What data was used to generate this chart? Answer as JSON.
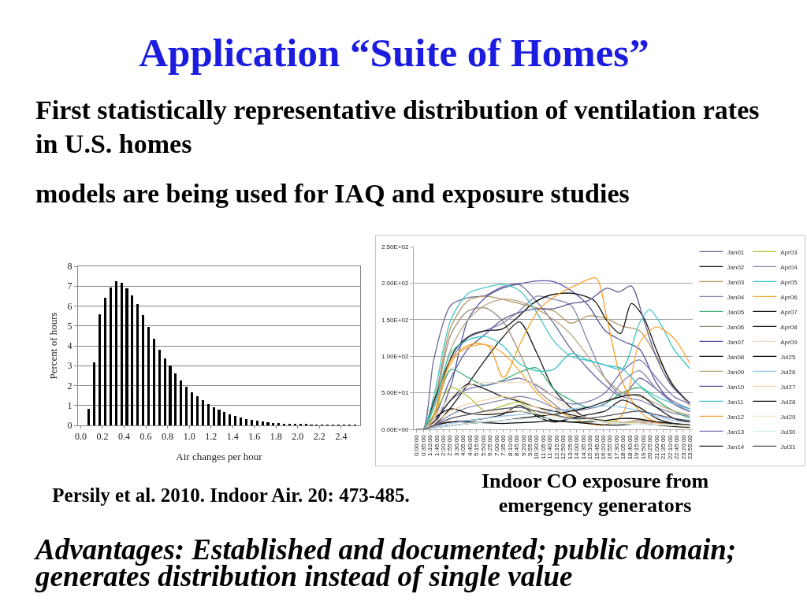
{
  "chart_data": [
    {
      "type": "histogram",
      "title": "Application “Suite of Homes”",
      "subtitle": "First statistically representative distribution of ventilation rates in U.S. homes",
      "annotations": [
        "models are being used for IAQ and exposure studies",
        "Persily et al. 2010. Indoor Air. 20: 473-485."
      ],
      "xlabel": "Air changes per hour",
      "ylabel": "Percent of hours",
      "color": "#000000",
      "bins": [
        0.05,
        0.1,
        0.15,
        0.2,
        0.25,
        0.3,
        0.35,
        0.4,
        0.45,
        0.5,
        0.55,
        0.6,
        0.65,
        0.7,
        0.75,
        0.8,
        0.85,
        0.9,
        0.95,
        1,
        1.05,
        1.1,
        1.15,
        1.2,
        1.25,
        1.3,
        1.35,
        1.4,
        1.45,
        1.5,
        1.55,
        1.6,
        1.65,
        1.7,
        1.75,
        1.8,
        1.85,
        1.9,
        1.95,
        2,
        2.05,
        2.1,
        2.15,
        2.2,
        2.25,
        2.3,
        2.35,
        2.4,
        2.45,
        2.5,
        2.55
      ],
      "values": [
        0.85,
        3.15,
        5.6,
        6.4,
        6.95,
        7.25,
        7.15,
        6.9,
        6.55,
        6.1,
        5.55,
        4.95,
        4.35,
        3.8,
        3.35,
        3,
        2.6,
        2.25,
        1.95,
        1.68,
        1.47,
        1.25,
        1.08,
        0.93,
        0.8,
        0.68,
        0.57,
        0.48,
        0.4,
        0.33,
        0.27,
        0.23,
        0.18,
        0.15,
        0.12,
        0.1,
        0.08,
        0.07,
        0.05,
        0.05,
        0.04,
        0.03,
        0.03,
        0.02,
        0.02,
        0.02,
        0.01,
        0.01,
        0.01,
        0.01
      ],
      "xlim": [
        -0.025,
        2.575
      ],
      "xticks": [
        {
          "value": 0,
          "label": "0.0"
        },
        0.2,
        0.4,
        0.6,
        0.8,
        {
          "value": 1,
          "label": "1.0"
        },
        1.2,
        1.4,
        1.6,
        1.8,
        {
          "value": 2,
          "label": "2.0"
        },
        2.2,
        2.4
      ],
      "ylim": [
        0,
        8
      ],
      "yticks": [
        0,
        1,
        2,
        3,
        4,
        5,
        6,
        7,
        8
      ],
      "grid": "y"
    },
    {
      "type": "line",
      "title": "Indoor CO exposure from emergency generators",
      "annotations": [
        "Advantages: Established and documented; public domain; generates distribution instead of single value"
      ],
      "x": [
        0,
        0.5833,
        1.5,
        3,
        4.5,
        6,
        7.5,
        9,
        10.5,
        12,
        13.5,
        15,
        16.5,
        18,
        19.5,
        21,
        22.5,
        23.9167
      ],
      "series": [
        {
          "name": "Jan01",
          "color": "#6b6b9b",
          "values": [
            0,
            0,
            95,
            170,
            180,
            183,
            195,
            198,
            175,
            145,
            110,
            83,
            60,
            45,
            70,
            55,
            38,
            28
          ]
        },
        {
          "name": "Jan02",
          "color": "#1c1c1c",
          "values": [
            0,
            0,
            5,
            30,
            62,
            95,
            125,
            147,
            105,
            55,
            30,
            15,
            10,
            8,
            8,
            6,
            5,
            4
          ]
        },
        {
          "name": "Jan03",
          "color": "#b39867",
          "values": [
            0,
            0,
            35,
            140,
            176,
            182,
            178,
            172,
            166,
            162,
            145,
            155,
            152,
            141,
            135,
            100,
            60,
            32
          ]
        },
        {
          "name": "Jan04",
          "color": "#8585b5",
          "values": [
            0,
            0,
            30,
            95,
            125,
            135,
            145,
            162,
            182,
            178,
            170,
            120,
            70,
            45,
            40,
            30,
            22,
            18
          ]
        },
        {
          "name": "Jan05",
          "color": "#3fae7a",
          "values": [
            0,
            0,
            20,
            82,
            71,
            60,
            67,
            78,
            84,
            55,
            40,
            30,
            35,
            50,
            57,
            40,
            25,
            15
          ]
        },
        {
          "name": "Jan06",
          "color": "#9e8f7e",
          "values": [
            0,
            0,
            30,
            130,
            162,
            166,
            149,
            105,
            55,
            35,
            18,
            12,
            10,
            10,
            12,
            10,
            8,
            6
          ]
        },
        {
          "name": "Jan07",
          "color": "#5555a5",
          "values": [
            0,
            0,
            5,
            60,
            150,
            180,
            193,
            199,
            203,
            202,
            190,
            170,
            135,
            121,
            110,
            63,
            35,
            24
          ]
        },
        {
          "name": "Jan08",
          "color": "#111111",
          "x": [
            0,
            0.5833,
            1.54,
            3.42,
            4.77,
            6.12,
            7.47,
            8.82,
            10.16,
            11.78,
            13.67,
            15.56,
            16.64,
            17.85,
            18.79,
            19.87,
            20.95,
            22.3,
            23.9167
          ],
          "values": [
            0,
            0,
            40,
            110,
            129,
            135,
            137,
            153,
            172,
            184,
            186,
            176,
            149,
            131,
            172,
            153,
            110,
            63,
            36
          ]
        },
        {
          "name": "Jan09",
          "color": "#b8a57f",
          "values": [
            0,
            0,
            30,
            110,
            150,
            170,
            178,
            175,
            165,
            150,
            130,
            100,
            70,
            50,
            45,
            35,
            25,
            20
          ]
        },
        {
          "name": "Jan10",
          "color": "#5d5d95",
          "x": [
            0,
            0.5833,
            1.5,
            3,
            4.5,
            6,
            7.5,
            9,
            10.5,
            12,
            13.5,
            15,
            16.64,
            17.71,
            18.79,
            19.87,
            20.95,
            22.3,
            23.9167
          ],
          "values": [
            0,
            0,
            15,
            70,
            110,
            130,
            150,
            160,
            165,
            165,
            172,
            176,
            193,
            188,
            196,
            150,
            100,
            60,
            36
          ]
        },
        {
          "name": "Jan11",
          "color": "#45c3c8",
          "values": [
            0,
            0,
            45,
            150,
            186,
            194,
            198,
            190,
            160,
            121,
            100,
            94,
            88,
            83,
            60,
            45,
            35,
            28
          ]
        },
        {
          "name": "Jan12",
          "color": "#f5a02a",
          "x": [
            0,
            0.5833,
            1.27,
            2.62,
            3.96,
            5.31,
            6.39,
            7.6,
            9.09,
            10.7,
            12.32,
            13.94,
            15.69,
            16.64,
            17.71,
            18.79,
            20.14,
            21.49,
            23.9167
          ],
          "values": [
            0,
            0,
            10,
            80,
            110,
            118,
            112,
            71,
            118,
            164,
            184,
            197,
            207,
            153,
            79,
            40,
            16,
            8,
            2
          ]
        },
        {
          "name": "Jan13",
          "color": "#7676b0",
          "values": [
            0,
            0,
            10,
            40,
            55,
            60,
            65,
            70,
            60,
            45,
            35,
            38,
            50,
            80,
            95,
            70,
            45,
            35
          ]
        },
        {
          "name": "Jan14",
          "color": "#222222",
          "values": [
            0,
            0,
            10,
            40,
            62,
            55,
            45,
            38,
            30,
            25,
            20,
            15,
            12,
            10,
            10,
            8,
            6,
            5
          ]
        },
        {
          "name": "Apr03",
          "color": "#a9c63d",
          "values": [
            0,
            0,
            20,
            57,
            45,
            25,
            32,
            37,
            22,
            19,
            15,
            12,
            12,
            10,
            8,
            6,
            5,
            5
          ]
        },
        {
          "name": "Apr04",
          "color": "#8a8ab5",
          "values": [
            0,
            0,
            5,
            20,
            30,
            35,
            40,
            45,
            40,
            30,
            25,
            28,
            35,
            65,
            80,
            55,
            35,
            25
          ]
        },
        {
          "name": "Apr05",
          "color": "#3cc6c6",
          "x": [
            0,
            0.5833,
            1.5,
            3,
            4.5,
            6,
            7.5,
            9,
            10.5,
            12,
            13.5,
            15,
            16.5,
            18,
            19.5,
            20.4,
            21.5,
            22.5,
            23.9167
          ],
          "values": [
            0,
            0,
            30,
            105,
            122,
            127,
            115,
            90,
            80,
            82,
            104,
            95,
            88,
            83,
            145,
            164,
            140,
            110,
            83
          ]
        },
        {
          "name": "Apr06",
          "color": "#f7a93b",
          "values": [
            0,
            0,
            15,
            95,
            112,
            116,
            105,
            80,
            50,
            30,
            16,
            8,
            6,
            20,
            118,
            140,
            125,
            90
          ]
        },
        {
          "name": "Apr07",
          "color": "#0d0d0d",
          "values": [
            0,
            0,
            15,
            28,
            22,
            20,
            22,
            25,
            20,
            12,
            10,
            10,
            12,
            15,
            14,
            10,
            8,
            6
          ]
        },
        {
          "name": "Apr08",
          "color": "#1e1e1e",
          "values": [
            0,
            0,
            5,
            10,
            12,
            15,
            20,
            33,
            18,
            10,
            15,
            20,
            25,
            40,
            30,
            15,
            8,
            6
          ]
        },
        {
          "name": "Apr09",
          "color": "#f1dac2",
          "values": [
            0,
            0,
            15,
            45,
            60,
            64,
            64,
            64,
            62,
            45,
            25,
            15,
            10,
            8,
            8,
            6,
            5,
            4
          ]
        },
        {
          "name": "Jul25",
          "color": "#080808",
          "values": [
            0,
            0,
            5,
            10,
            10,
            9,
            8,
            9,
            10,
            12,
            10,
            8,
            6,
            6,
            8,
            6,
            4,
            3
          ]
        },
        {
          "name": "Jul26",
          "color": "#98c9ee",
          "values": [
            0,
            0,
            3,
            8,
            12,
            15,
            18,
            20,
            22,
            25,
            28,
            30,
            32,
            30,
            25,
            18,
            12,
            10
          ]
        },
        {
          "name": "Jul27",
          "color": "#f6d3a6",
          "values": [
            0,
            0,
            8,
            25,
            35,
            40,
            45,
            40,
            30,
            20,
            15,
            12,
            10,
            10,
            10,
            8,
            6,
            5
          ]
        },
        {
          "name": "Jul28",
          "color": "#151515",
          "values": [
            0,
            0,
            2,
            5,
            8,
            10,
            12,
            15,
            18,
            20,
            25,
            30,
            38,
            45,
            47,
            30,
            15,
            10
          ]
        },
        {
          "name": "Jul29",
          "color": "#f7e3cb",
          "values": [
            0,
            0,
            5,
            15,
            20,
            22,
            25,
            25,
            22,
            18,
            15,
            12,
            10,
            8,
            8,
            7,
            6,
            5
          ]
        },
        {
          "name": "Jul30",
          "color": "#d3efee",
          "values": [
            0,
            0,
            2,
            5,
            8,
            10,
            12,
            14,
            15,
            15,
            14,
            12,
            10,
            8,
            7,
            6,
            5,
            4
          ]
        },
        {
          "name": "Jul31",
          "color": "#4f4f60",
          "values": [
            0,
            0,
            5,
            15,
            20,
            25,
            28,
            30,
            25,
            20,
            15,
            15,
            18,
            22,
            25,
            20,
            15,
            12
          ]
        }
      ],
      "xlim": [
        -0.25,
        24.1667
      ],
      "xticks": [
        {
          "value": 0,
          "label": "0:00:00"
        },
        {
          "value": 0.5833,
          "label": "0:35:00"
        },
        {
          "value": 1.1667,
          "label": "1:10:00"
        },
        {
          "value": 1.75,
          "label": "1:45:00"
        },
        {
          "value": 2.3333,
          "label": "2:20:00"
        },
        {
          "value": 2.9167,
          "label": "2:55:00"
        },
        {
          "value": 3.5,
          "label": "3:30:00"
        },
        {
          "value": 4.0833,
          "label": "4:05:00"
        },
        {
          "value": 4.6667,
          "label": "4:40:00"
        },
        {
          "value": 5.25,
          "label": "5:15:00"
        },
        {
          "value": 5.8333,
          "label": "5:50:00"
        },
        {
          "value": 6.4167,
          "label": "6:25:00"
        },
        {
          "value": 7,
          "label": "7:00:00"
        },
        {
          "value": 7.5833,
          "label": "7:35:00"
        },
        {
          "value": 8.1667,
          "label": "8:10:00"
        },
        {
          "value": 8.75,
          "label": "8:45:00"
        },
        {
          "value": 9.3333,
          "label": "9:20:00"
        },
        {
          "value": 9.9167,
          "label": "9:55:00"
        },
        {
          "value": 10.5,
          "label": "10:30:00"
        },
        {
          "value": 11.0833,
          "label": "11:05:00"
        },
        {
          "value": 11.6667,
          "label": "11:40:00"
        },
        {
          "value": 12.25,
          "label": "12:15:00"
        },
        {
          "value": 12.8333,
          "label": "12:50:00"
        },
        {
          "value": 13.4167,
          "label": "13:25:00"
        },
        {
          "value": 14,
          "label": "14:00:00"
        },
        {
          "value": 14.5833,
          "label": "14:35:00"
        },
        {
          "value": 15.1667,
          "label": "15:10:00"
        },
        {
          "value": 15.75,
          "label": "15:45:00"
        },
        {
          "value": 16.3333,
          "label": "16:20:00"
        },
        {
          "value": 16.9167,
          "label": "16:55:00"
        },
        {
          "value": 17.5,
          "label": "17:30:00"
        },
        {
          "value": 18.0833,
          "label": "18:05:00"
        },
        {
          "value": 18.6667,
          "label": "18:40:00"
        },
        {
          "value": 19.25,
          "label": "19:15:00"
        },
        {
          "value": 19.8333,
          "label": "19:50:00"
        },
        {
          "value": 20.4167,
          "label": "20:25:00"
        },
        {
          "value": 21,
          "label": "21:00:00"
        },
        {
          "value": 21.5833,
          "label": "21:35:00"
        },
        {
          "value": 22.1667,
          "label": "22:10:00"
        },
        {
          "value": 22.75,
          "label": "22:45:00"
        },
        {
          "value": 23.3333,
          "label": "23:20:00"
        },
        {
          "value": 23.9167,
          "label": "23:55:00"
        }
      ],
      "ylim": [
        0,
        250
      ],
      "yticks": [
        {
          "value": 0,
          "label": "0.00E+00"
        },
        {
          "value": 50,
          "label": "5.00E+01"
        },
        {
          "value": 100,
          "label": "1.00E+02"
        },
        {
          "value": 150,
          "label": "1.50E+02"
        },
        {
          "value": 200,
          "label": "2.00E+02"
        },
        {
          "value": 250,
          "label": "2.50E+02"
        }
      ],
      "grid": "y",
      "legend": "right"
    }
  ]
}
